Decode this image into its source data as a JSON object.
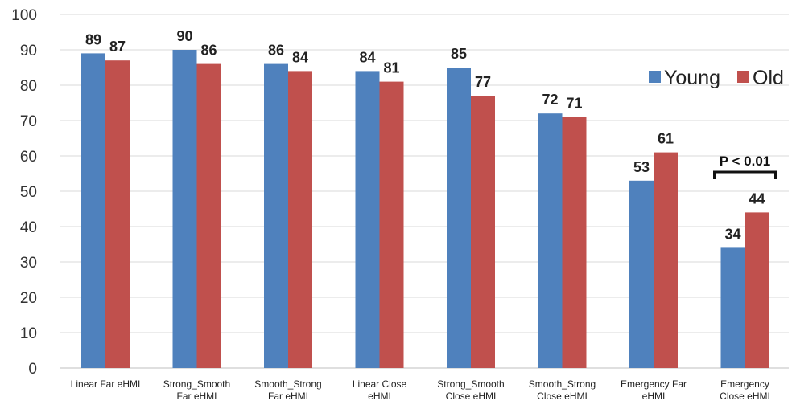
{
  "chart_data": {
    "type": "bar",
    "categories": [
      [
        "Linear Far eHMI"
      ],
      [
        "Strong_Smooth",
        "Far eHMI"
      ],
      [
        "Smooth_Strong",
        "Far eHMI"
      ],
      [
        "Linear Close",
        "eHMI"
      ],
      [
        "Strong_Smooth",
        "Close eHMI"
      ],
      [
        "Smooth_Strong",
        "Close eHMI"
      ],
      [
        "Emergency Far",
        "eHMI"
      ],
      [
        "Emergency",
        "Close eHMI"
      ]
    ],
    "series": [
      {
        "name": "Young",
        "color": "#4f81bd",
        "values": [
          89,
          90,
          86,
          84,
          85,
          72,
          53,
          34
        ]
      },
      {
        "name": "Old",
        "color": "#c0504d",
        "values": [
          87,
          86,
          84,
          81,
          77,
          71,
          61,
          44
        ]
      }
    ],
    "ylim": [
      0,
      100
    ],
    "yticks": [
      0,
      10,
      20,
      30,
      40,
      50,
      60,
      70,
      80,
      90,
      100
    ],
    "grid": true,
    "legend_position": "right",
    "annotations": [
      {
        "text": "P < 0.01",
        "category_index": 7
      }
    ]
  }
}
